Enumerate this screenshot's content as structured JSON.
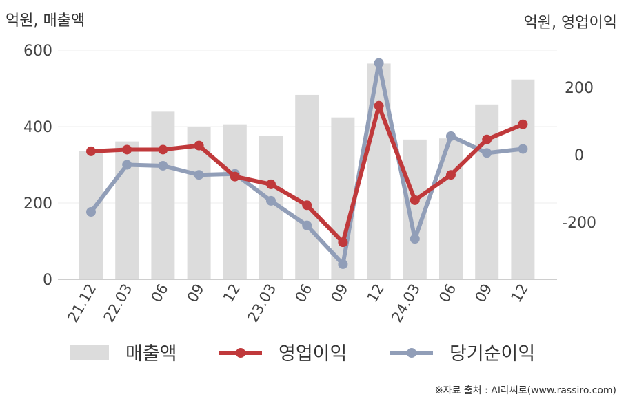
{
  "chart_data": {
    "type": "bar+line",
    "categories": [
      "21.12",
      "22.03",
      "06",
      "09",
      "12",
      "23.03",
      "06",
      "09",
      "12",
      "24.03",
      "06",
      "09",
      "12"
    ],
    "left_axis": {
      "unit_label": "억원, 매출액",
      "range": [
        0,
        600
      ],
      "ticks": [
        "0",
        "200",
        "400",
        "600"
      ]
    },
    "right_axis": {
      "unit_label": "억원, 영업이익",
      "range": [
        -370,
        310
      ],
      "ticks": [
        "-200",
        "0",
        "200"
      ]
    },
    "series": [
      {
        "name": "매출액",
        "type": "bar",
        "axis": "left",
        "color": "#dcdcdc",
        "values": [
          336,
          361,
          439,
          400,
          406,
          375,
          483,
          424,
          565,
          366,
          369,
          458,
          523
        ]
      },
      {
        "name": "영업이익",
        "type": "line",
        "axis": "right",
        "color": "#c0393b",
        "values": [
          10,
          15,
          15,
          27,
          -65,
          -88,
          -150,
          -260,
          145,
          -135,
          -60,
          45,
          90
        ]
      },
      {
        "name": "당기순이익",
        "type": "line",
        "axis": "right",
        "color": "#919eb8",
        "values": [
          -170,
          -30,
          -33,
          -60,
          -57,
          -137,
          -210,
          -325,
          272,
          -250,
          55,
          5,
          17
        ]
      }
    ],
    "grid": "horizontal",
    "legend_position": "bottom"
  },
  "source": "※자료 출처 : AI라씨로(www.rassiro.com)"
}
